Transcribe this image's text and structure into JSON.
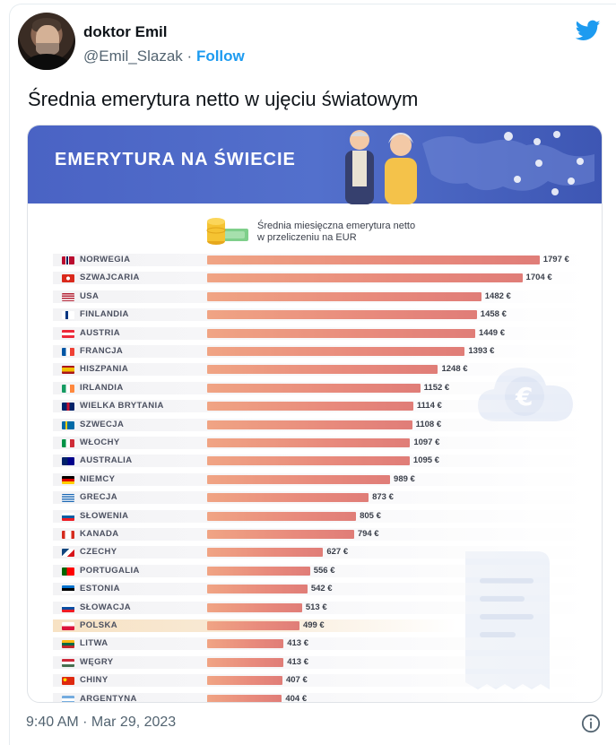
{
  "tweet": {
    "author_name": "doktor Emil",
    "handle": "@Emil_Slazak",
    "separator": "·",
    "follow_label": "Follow",
    "text": "Średnia emerytura netto w ujęciu światowym",
    "timestamp": "9:40 AM · Mar 29, 2023",
    "icons": {
      "brand": "twitter-bird-icon",
      "info": "info-icon"
    },
    "brand_color": "#1d9bf0"
  },
  "infographic": {
    "banner_title": "EMERYTURA NA ŚWIECIE",
    "subtitle_line1": "Średnia miesięczna emerytura netto",
    "subtitle_line2": "w przeliczeniu na EUR",
    "banner_color": "#4a63c4",
    "bar_color": "#e88a7c"
  },
  "chart_data": {
    "type": "bar",
    "orientation": "horizontal",
    "title": "EMERYTURA NA ŚWIECIE",
    "unit": "€",
    "categories": [
      "NORWEGIA",
      "SZWAJCARIA",
      "USA",
      "FINLANDIA",
      "AUSTRIA",
      "FRANCJA",
      "HISZPANIA",
      "IRLANDIA",
      "WIELKA BRYTANIA",
      "SZWECJA",
      "WŁOCHY",
      "AUSTRALIA",
      "NIEMCY",
      "GRECJA",
      "SŁOWENIA",
      "KANADA",
      "CZECHY",
      "PORTUGALIA",
      "ESTONIA",
      "SŁOWACJA",
      "POLSKA",
      "LITWA",
      "WĘGRY",
      "CHINY",
      "ARGENTYNA"
    ],
    "values": [
      1797,
      1704,
      1482,
      1458,
      1449,
      1393,
      1248,
      1152,
      1114,
      1108,
      1097,
      1095,
      989,
      873,
      805,
      794,
      627,
      556,
      542,
      513,
      499,
      413,
      413,
      407,
      404
    ],
    "value_labels": [
      "1797 €",
      "1704 €",
      "1482 €",
      "1458 €",
      "1449 €",
      "1393 €",
      "1248 €",
      "1152 €",
      "1114 €",
      "1108 €",
      "1097 €",
      "1095 €",
      "989 €",
      "873 €",
      "805 €",
      "794 €",
      "627 €",
      "556 €",
      "542 €",
      "513 €",
      "499 €",
      "413 €",
      "413 €",
      "407 €",
      "404 €"
    ],
    "highlight": "POLSKA",
    "xlim": [
      0,
      1900
    ]
  }
}
